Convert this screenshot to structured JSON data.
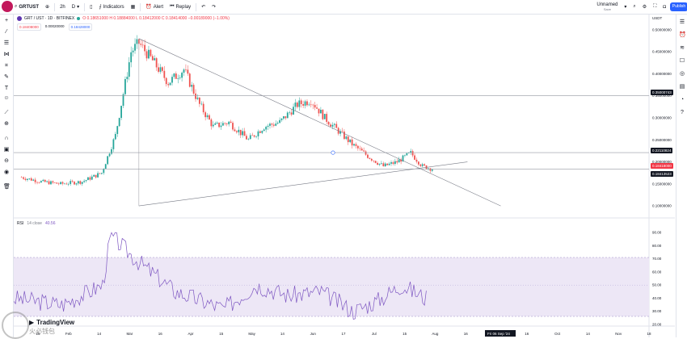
{
  "topbar": {
    "symbol": "GRTUST",
    "interval": "2h",
    "interval_alt": "D",
    "indicators": "Indicators",
    "alert": "Alert",
    "replay": "Replay",
    "layout_name": "Unnamed",
    "layout_state": "Save",
    "publish": "Publish"
  },
  "legend": {
    "title": "GRT / UST · 1D · BITFINEX",
    "ohlc": "O 0.18651000  H 0.18884000  L 0.18412000  C 0.18414000  −0.00189000 (−1.00%)",
    "price_red": "0.18408000",
    "price_mid": "0.00020000",
    "price_blue": "0.18428000"
  },
  "price_axis": {
    "currency": "USDT",
    "ticks": [
      "0.50000000",
      "0.45000000",
      "0.40000000",
      "0.35000000",
      "0.30000000",
      "0.25000000",
      "0.20000000",
      "0.15000000",
      "0.10000000"
    ],
    "tag_high": "0.35000743",
    "tag_mid": "0.22110824",
    "tag_bid": "0.18418000",
    "tag_last": "0.18413523"
  },
  "rsi": {
    "label": "RSI",
    "params": "14 close",
    "value": "40.56",
    "ticks": [
      "90.00",
      "80.00",
      "70.00",
      "60.00",
      "50.00",
      "40.00",
      "30.00",
      "20.00"
    ]
  },
  "time_axis": {
    "labels": [
      "15",
      "Feb",
      "14",
      "Mar",
      "16",
      "Apr",
      "15",
      "May",
      "14",
      "Jun",
      "17",
      "Jul",
      "15",
      "Aug",
      "16",
      "Sep",
      "16",
      "Oct",
      "14",
      "Nov",
      "18"
    ],
    "crosshair": "Fri 06 Sep '24"
  },
  "watermark": {
    "brand": "TradingView",
    "site": "火必钱包"
  },
  "colors": {
    "up": "#26a69a",
    "down": "#ef5350",
    "rsi_line": "#7e57c2",
    "rsi_band": "#ede7f6",
    "accent": "#2962ff"
  },
  "chart_data": {
    "type": "candlestick",
    "series": [
      {
        "name": "GRT / UST · 1D · BITFINEX",
        "kind": "ohlc"
      }
    ],
    "ylim": [
      0.08,
      0.52
    ],
    "x_start": "2024-01-01",
    "x_end": "2024-11-20",
    "y_scale": "linear",
    "close_approx": [
      [
        "2024-01-05",
        0.165
      ],
      [
        "2024-01-15",
        0.155
      ],
      [
        "2024-01-25",
        0.15
      ],
      [
        "2024-02-05",
        0.155
      ],
      [
        "2024-02-15",
        0.175
      ],
      [
        "2024-02-22",
        0.26
      ],
      [
        "2024-03-01",
        0.45
      ],
      [
        "2024-03-05",
        0.47
      ],
      [
        "2024-03-12",
        0.43
      ],
      [
        "2024-03-20",
        0.38
      ],
      [
        "2024-03-28",
        0.41
      ],
      [
        "2024-04-05",
        0.33
      ],
      [
        "2024-04-12",
        0.28
      ],
      [
        "2024-04-20",
        0.29
      ],
      [
        "2024-04-30",
        0.25
      ],
      [
        "2024-05-08",
        0.28
      ],
      [
        "2024-05-16",
        0.29
      ],
      [
        "2024-05-25",
        0.33
      ],
      [
        "2024-06-01",
        0.34
      ],
      [
        "2024-06-08",
        0.3
      ],
      [
        "2024-06-15",
        0.27
      ],
      [
        "2024-06-22",
        0.24
      ],
      [
        "2024-07-01",
        0.21
      ],
      [
        "2024-07-08",
        0.19
      ],
      [
        "2024-07-15",
        0.2
      ],
      [
        "2024-07-22",
        0.22
      ],
      [
        "2024-07-28",
        0.19
      ],
      [
        "2024-08-02",
        0.184
      ]
    ],
    "trendlines": [
      {
        "from": [
          "2024-03-05",
          0.48
        ],
        "to": [
          "2024-09-06",
          0.1
        ]
      },
      {
        "from": [
          "2024-03-05",
          0.1
        ],
        "to": [
          "2024-08-20",
          0.2
        ]
      }
    ],
    "horizontal_lines": [
      0.35,
      0.221,
      0.184
    ],
    "rsi_series": {
      "ylim": [
        20,
        95
      ],
      "overbought": 70,
      "oversold": 30,
      "last": 40.56
    }
  }
}
